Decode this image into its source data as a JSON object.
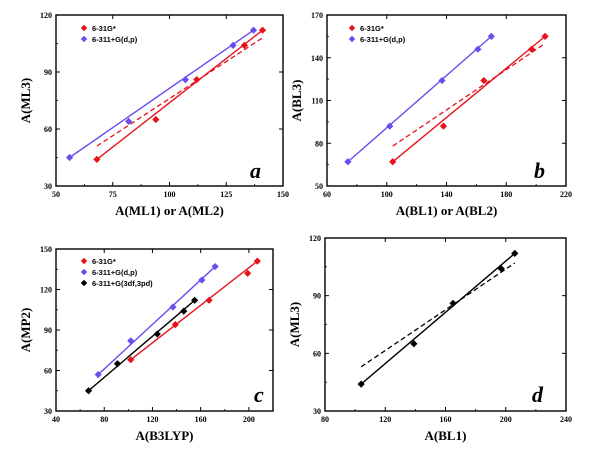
{
  "colors": {
    "red": "#e8111a",
    "blue": "#6a4cf0",
    "black": "#000000"
  },
  "chart_data": [
    {
      "type": "scatter",
      "panel": "a",
      "xlabel": "A(ML1) or A(ML2)",
      "ylabel": "A(ML3)",
      "xlim": [
        50,
        150
      ],
      "ylim": [
        30,
        120
      ],
      "xticks": [
        50,
        75,
        100,
        125,
        150
      ],
      "yticks": [
        30,
        60,
        90,
        120
      ],
      "series": [
        {
          "name": "6-31G*",
          "color": "red",
          "points": [
            [
              68,
              44
            ],
            [
              94,
              65
            ],
            [
              112,
              86
            ],
            [
              133,
              104
            ],
            [
              141,
              112
            ]
          ],
          "fit": [
            [
              68,
              44
            ],
            [
              141,
              112
            ]
          ],
          "dashed": [
            [
              68,
              51
            ],
            [
              141,
              108
            ]
          ]
        },
        {
          "name": "6-311+G(d,p)",
          "color": "blue",
          "points": [
            [
              56,
              45
            ],
            [
              82,
              64
            ],
            [
              107,
              86
            ],
            [
              128,
              104
            ],
            [
              137,
              112
            ]
          ],
          "fit": [
            [
              56,
              45
            ],
            [
              137,
              112
            ]
          ]
        }
      ]
    },
    {
      "type": "scatter",
      "panel": "b",
      "xlabel": "A(BL1) or A(BL2)",
      "ylabel": "A(BL3)",
      "xlim": [
        60,
        220
      ],
      "ylim": [
        50,
        170
      ],
      "xticks": [
        60,
        100,
        140,
        180,
        220
      ],
      "yticks": [
        50,
        80,
        110,
        140,
        170
      ],
      "series": [
        {
          "name": "6-31G*",
          "color": "red",
          "points": [
            [
              104,
              67
            ],
            [
              138,
              92
            ],
            [
              165,
              124
            ],
            [
              197,
              146
            ],
            [
              206,
              155
            ]
          ],
          "fit": [
            [
              104,
              67
            ],
            [
              206,
              155
            ]
          ],
          "dashed": [
            [
              104,
              78
            ],
            [
              206,
              150
            ]
          ]
        },
        {
          "name": "6-311+G(d,p)",
          "color": "blue",
          "points": [
            [
              74,
              67
            ],
            [
              102,
              92
            ],
            [
              137,
              124
            ],
            [
              161,
              146
            ],
            [
              170,
              155
            ]
          ],
          "fit": [
            [
              74,
              67
            ],
            [
              170,
              155
            ]
          ]
        }
      ]
    },
    {
      "type": "scatter",
      "panel": "c",
      "xlabel": "A(B3LYP)",
      "ylabel": "A(MP2)",
      "xlim": [
        40,
        220
      ],
      "ylim": [
        30,
        150
      ],
      "xticks": [
        40,
        80,
        120,
        160,
        200
      ],
      "yticks": [
        30,
        60,
        90,
        120,
        150
      ],
      "series": [
        {
          "name": "6-31G*",
          "color": "red",
          "points": [
            [
              102,
              68
            ],
            [
              139,
              94
            ],
            [
              167,
              112
            ],
            [
              199,
              132
            ],
            [
              207,
              141
            ]
          ],
          "fit": [
            [
              102,
              68
            ],
            [
              207,
              141
            ]
          ]
        },
        {
          "name": "6-311+G(d,p)",
          "color": "blue",
          "points": [
            [
              75,
              57
            ],
            [
              102,
              82
            ],
            [
              137,
              107
            ],
            [
              161,
              127
            ],
            [
              172,
              137
            ]
          ],
          "fit": [
            [
              75,
              57
            ],
            [
              172,
              137
            ]
          ]
        },
        {
          "name": "6-311+G(3df,3pd)",
          "color": "black",
          "points": [
            [
              67,
              45
            ],
            [
              91,
              65
            ],
            [
              124,
              87
            ],
            [
              146,
              104
            ],
            [
              155,
              112
            ]
          ],
          "fit": [
            [
              67,
              45
            ],
            [
              155,
              112
            ]
          ]
        }
      ]
    },
    {
      "type": "scatter",
      "panel": "d",
      "xlabel": "A(BL1)",
      "ylabel": "A(ML3)",
      "xlim": [
        80,
        240
      ],
      "ylim": [
        30,
        120
      ],
      "xticks": [
        80,
        120,
        160,
        200,
        240
      ],
      "yticks": [
        30,
        60,
        90,
        120
      ],
      "series": [
        {
          "name": "",
          "color": "black",
          "points": [
            [
              104,
              44
            ],
            [
              139,
              65
            ],
            [
              165,
              86
            ],
            [
              197,
              104
            ],
            [
              206,
              112
            ]
          ],
          "fit": [
            [
              104,
              44
            ],
            [
              206,
              112
            ]
          ],
          "dashed": [
            [
              104,
              53
            ],
            [
              206,
              107
            ]
          ]
        }
      ]
    }
  ]
}
